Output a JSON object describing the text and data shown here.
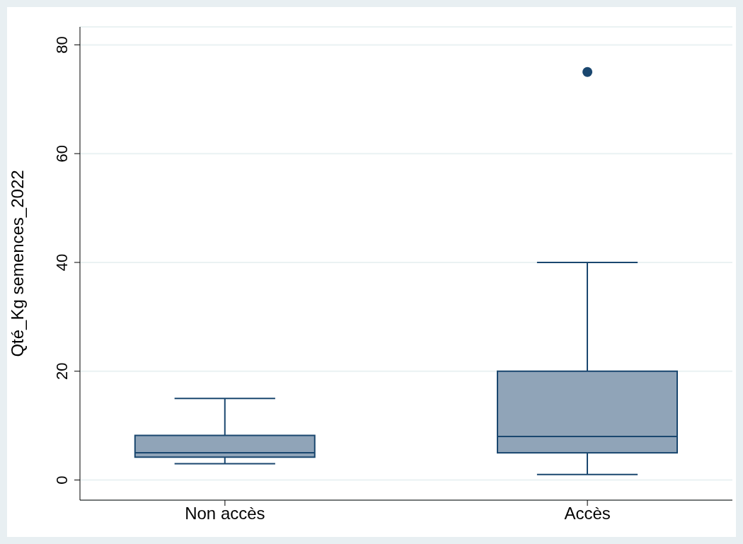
{
  "chart_data": {
    "type": "box",
    "ylabel": "Qté_Kg semences_2022",
    "categories": [
      "Non accès",
      "Accès"
    ],
    "color": "#90a4b8",
    "boxes": [
      {
        "low": 3,
        "q1": 4.2,
        "median": 5,
        "q3": 8.2,
        "high": 15
      },
      {
        "low": 1,
        "q1": 5,
        "median": 8,
        "q3": 20,
        "high": 40,
        "outliers": [
          75
        ]
      }
    ],
    "ylim": [
      -3.7,
      83.3
    ],
    "yticks": [
      0,
      20,
      40,
      60,
      80
    ],
    "grid": "y"
  }
}
